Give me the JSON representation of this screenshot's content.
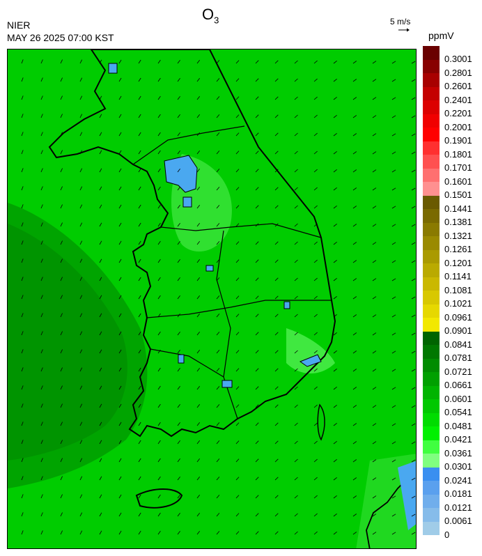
{
  "header": {
    "agency": "NIER",
    "datetime": "MAY 26 2025 07:00 KST",
    "title_main": "O",
    "title_sub": "3",
    "wind_reference": "5 m/s",
    "unit": "ppmV"
  },
  "colorbar": {
    "colors": [
      "#6a0000",
      "#880000",
      "#a80000",
      "#c40000",
      "#dc0000",
      "#f00000",
      "#ff0000",
      "#ff3030",
      "#ff5050",
      "#ff7070",
      "#ff9090",
      "#6a5a00",
      "#7a6a00",
      "#8a7a00",
      "#9a8a00",
      "#aa9a00",
      "#baaa00",
      "#cab800",
      "#d8c800",
      "#e6d800",
      "#f2e800",
      "#006400",
      "#007800",
      "#008c00",
      "#00a000",
      "#00b400",
      "#00c800",
      "#00dc00",
      "#00f000",
      "#40ff40",
      "#80ff80",
      "#3a8ff0",
      "#5aa0ee",
      "#70aeec",
      "#86bcea",
      "#a0cce8"
    ],
    "labels": [
      "0.3001",
      "0.2801",
      "0.2601",
      "0.2401",
      "0.2201",
      "0.2001",
      "0.1901",
      "0.1801",
      "0.1701",
      "0.1601",
      "0.1501",
      "0.1441",
      "0.1381",
      "0.1321",
      "0.1261",
      "0.1201",
      "0.1141",
      "0.1081",
      "0.1021",
      "0.0961",
      "0.0901",
      "0.0841",
      "0.0781",
      "0.0721",
      "0.0661",
      "0.0601",
      "0.0541",
      "0.0481",
      "0.0421",
      "0.0361",
      "0.0301",
      "0.0241",
      "0.0181",
      "0.0121",
      "0.0061",
      "0"
    ]
  },
  "map": {
    "background": "#00cc00",
    "west_sea_tone": "#009a00",
    "urban_tone": "#4aa8f0",
    "outline_color": "#000000"
  }
}
